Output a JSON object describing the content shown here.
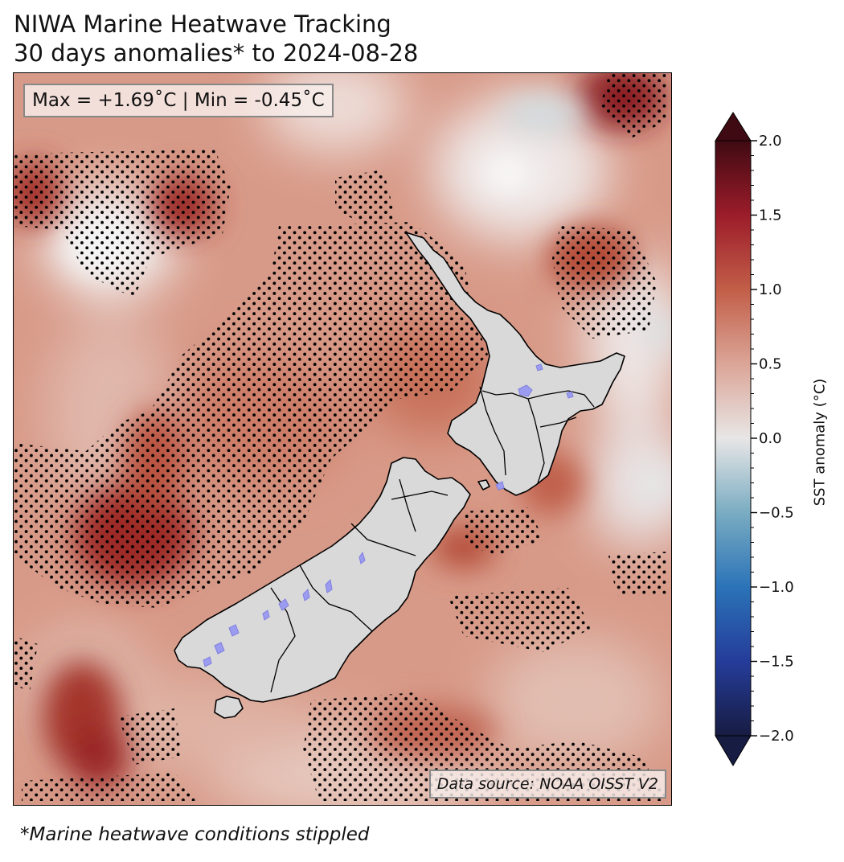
{
  "header": {
    "title_line1": "NIWA Marine Heatwave Tracking",
    "title_line2": "30 days anomalies* to 2024-08-28"
  },
  "map": {
    "stats_label": "Max = +1.69˚C | Min = -0.45˚C",
    "max_anomaly_c": 1.69,
    "min_anomaly_c": -0.45,
    "source_label": "Data source: NOAA OISST V2",
    "land_color": "#d9d9d9",
    "lake_color": "#9999ee",
    "coast_color": "#000000",
    "stipple_color": "#000000"
  },
  "colorbar": {
    "label": "SST anomaly (°C)",
    "min": -2.0,
    "max": 2.0,
    "extend": "both",
    "ticks": [
      {
        "value": 2.0,
        "label": "2.0"
      },
      {
        "value": 1.5,
        "label": "1.5"
      },
      {
        "value": 1.0,
        "label": "1.0"
      },
      {
        "value": 0.5,
        "label": "0.5"
      },
      {
        "value": 0.0,
        "label": "0.0"
      },
      {
        "value": -0.5,
        "label": "−0.5"
      },
      {
        "value": -1.0,
        "label": "−1.0"
      },
      {
        "value": -1.5,
        "label": "−1.5"
      },
      {
        "value": -2.0,
        "label": "−2.0"
      }
    ],
    "color_stops": [
      {
        "value": -2.0,
        "color": "#171c42"
      },
      {
        "value": -1.5,
        "color": "#253c9a"
      },
      {
        "value": -1.0,
        "color": "#2b73b8"
      },
      {
        "value": -0.5,
        "color": "#7aacc2"
      },
      {
        "value": 0.0,
        "color": "#e8e6e6"
      },
      {
        "value": 0.5,
        "color": "#dba597"
      },
      {
        "value": 1.0,
        "color": "#c25e48"
      },
      {
        "value": 1.5,
        "color": "#9c1c2a"
      },
      {
        "value": 2.0,
        "color": "#3f0a12"
      }
    ]
  },
  "footnote": "*Marine heatwave conditions stippled"
}
